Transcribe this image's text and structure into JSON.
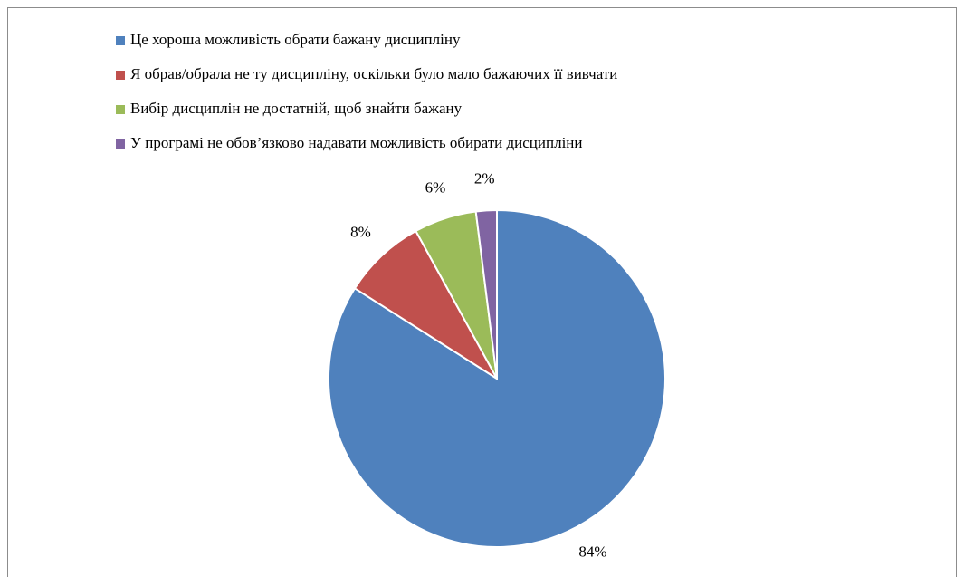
{
  "chart_data": {
    "type": "pie",
    "categories": [
      "Це хороша можливість обрати бажану дисципліну",
      "Я обрав/обрала не ту дисципліну, оскільки було мало бажаючих її вивчати",
      "Вибір дисциплін не достатній, щоб знайти бажану",
      "У програмі не обов’язково надавати можливість обирати дисципліни"
    ],
    "values": [
      84,
      8,
      6,
      2
    ],
    "value_labels": [
      "84%",
      "8%",
      "6%",
      "2%"
    ],
    "colors": [
      "#4f81bd",
      "#c0504d",
      "#9bbb59",
      "#8064a2"
    ],
    "legend": "top"
  }
}
